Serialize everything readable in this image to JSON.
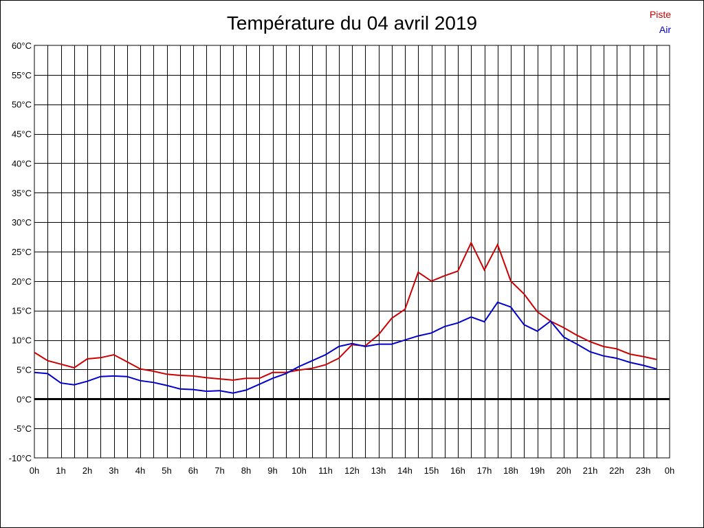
{
  "title": "Température du 04 avril 2019",
  "legend": [
    {
      "label": "Piste",
      "color": "#cc0000"
    },
    {
      "label": "Air",
      "color": "#0000cc"
    }
  ],
  "chart_data": {
    "type": "line",
    "title": "Température du 04 avril 2019",
    "xlabel": "",
    "ylabel": "",
    "xlim": [
      0,
      24
    ],
    "ylim": [
      -10,
      60
    ],
    "grid": true,
    "legend_position": "top-right",
    "x_ticks": [
      "0h",
      "1h",
      "2h",
      "3h",
      "4h",
      "5h",
      "6h",
      "7h",
      "8h",
      "9h",
      "10h",
      "11h",
      "12h",
      "13h",
      "14h",
      "15h",
      "16h",
      "17h",
      "18h",
      "19h",
      "20h",
      "21h",
      "22h",
      "23h",
      "0h"
    ],
    "y_ticks": [
      "60°C",
      "55°C",
      "50°C",
      "45°C",
      "40°C",
      "35°C",
      "30°C",
      "25°C",
      "20°C",
      "15°C",
      "10°C",
      "5°C",
      "0°C",
      "-5°C",
      "-10°C"
    ],
    "x": [
      0,
      0.5,
      1,
      1.5,
      2,
      2.5,
      3,
      3.5,
      4,
      4.5,
      5,
      5.5,
      6,
      6.5,
      7,
      7.5,
      8,
      8.5,
      9,
      9.5,
      10,
      10.5,
      11,
      11.5,
      12,
      12.5,
      13,
      13.5,
      14,
      14.5,
      15,
      15.5,
      16,
      16.5,
      17,
      17.5,
      18,
      18.5,
      19,
      19.5,
      20,
      20.5,
      21,
      21.5,
      22,
      22.5,
      23,
      23.5
    ],
    "series": [
      {
        "name": "Piste",
        "color": "#cc0000",
        "values": [
          7.9,
          6.5,
          5.9,
          5.3,
          6.8,
          7.0,
          7.5,
          6.3,
          5.1,
          4.7,
          4.2,
          4.0,
          3.9,
          3.6,
          3.4,
          3.2,
          3.5,
          3.5,
          4.5,
          4.5,
          4.9,
          5.2,
          5.8,
          6.9,
          9.2,
          9.0,
          10.9,
          13.7,
          15.2,
          21.5,
          20.0,
          20.9,
          21.7,
          26.5,
          21.9,
          26.2,
          20.0,
          17.8,
          14.8,
          13.2,
          12.1,
          10.8,
          9.7,
          8.9,
          8.5,
          7.6,
          7.2,
          6.7
        ]
      },
      {
        "name": "Air",
        "color": "#0000cc",
        "values": [
          4.5,
          4.3,
          2.7,
          2.4,
          3.0,
          3.8,
          3.9,
          3.8,
          3.1,
          2.8,
          2.3,
          1.7,
          1.6,
          1.3,
          1.4,
          1.0,
          1.5,
          2.5,
          3.5,
          4.3,
          5.5,
          6.5,
          7.5,
          8.9,
          9.4,
          8.9,
          9.3,
          9.3,
          10.0,
          10.7,
          11.2,
          12.3,
          12.9,
          13.9,
          13.1,
          16.4,
          15.6,
          12.6,
          11.5,
          13.2,
          10.5,
          9.3,
          8.0,
          7.3,
          6.9,
          6.2,
          5.7,
          5.1
        ]
      }
    ]
  }
}
